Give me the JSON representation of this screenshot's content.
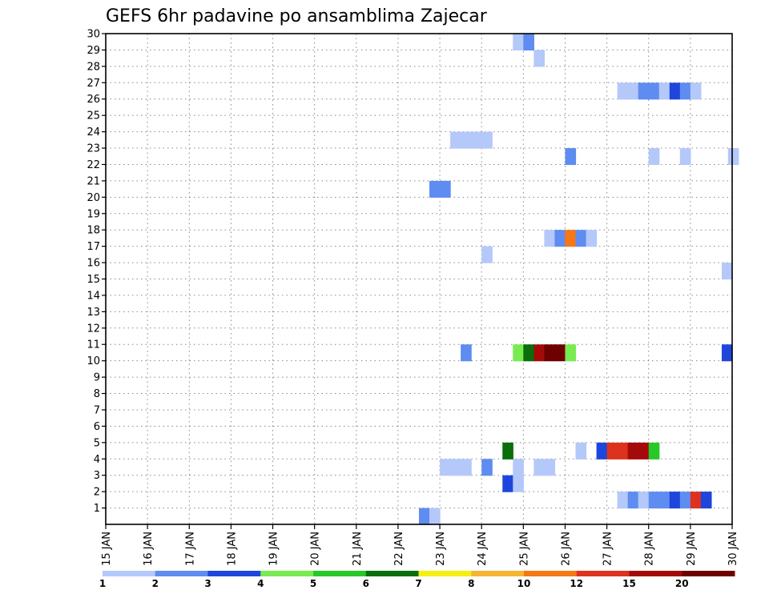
{
  "chart_data": {
    "type": "heatmap",
    "title": "GEFS 6hr padavine po ansamblima Zajecar",
    "y_ticks": [
      "1",
      "2",
      "3",
      "4",
      "5",
      "6",
      "7",
      "8",
      "9",
      "10",
      "11",
      "12",
      "13",
      "14",
      "15",
      "16",
      "17",
      "18",
      "19",
      "20",
      "21",
      "22",
      "23",
      "24",
      "25",
      "26",
      "27",
      "28",
      "29",
      "30"
    ],
    "x_ticks": [
      "15 JAN",
      "16 JAN",
      "17 JAN",
      "18 JAN",
      "19 JAN",
      "20 JAN",
      "21 JAN",
      "22 JAN",
      "23 JAN",
      "24 JAN",
      "25 JAN",
      "26 JAN",
      "27 JAN",
      "28 JAN",
      "29 JAN",
      "30 JAN"
    ],
    "x_range_days": [
      15,
      30
    ],
    "y_range": [
      0,
      30
    ],
    "grid": true,
    "colorbar": {
      "labels": [
        "1",
        "2",
        "3",
        "4",
        "5",
        "6",
        "7",
        "8",
        "10",
        "12",
        "15",
        "20"
      ],
      "colors": [
        "#b4c8fa",
        "#5f8cf0",
        "#1e46dc",
        "#78eb50",
        "#28c828",
        "#0a6e0a",
        "#f5f014",
        "#f5b432",
        "#f57814",
        "#dc321e",
        "#a50a0a",
        "#6e0000"
      ]
    },
    "cells": [
      {
        "m": 0,
        "d": 22.5,
        "c": 1
      },
      {
        "m": 0,
        "d": 22.75,
        "c": 0
      },
      {
        "m": 1,
        "d": 27.25,
        "c": 0
      },
      {
        "m": 1,
        "d": 27.5,
        "c": 1
      },
      {
        "m": 1,
        "d": 27.75,
        "c": 0
      },
      {
        "m": 1,
        "d": 28.0,
        "c": 1
      },
      {
        "m": 1,
        "d": 28.25,
        "c": 1
      },
      {
        "m": 1,
        "d": 28.5,
        "c": 2
      },
      {
        "m": 1,
        "d": 28.75,
        "c": 1
      },
      {
        "m": 1,
        "d": 29.0,
        "c": 9
      },
      {
        "m": 1,
        "d": 29.25,
        "c": 2
      },
      {
        "m": 2,
        "d": 24.5,
        "c": 2
      },
      {
        "m": 2,
        "d": 24.75,
        "c": 0
      },
      {
        "m": 3,
        "d": 23.0,
        "c": 0
      },
      {
        "m": 3,
        "d": 23.25,
        "c": 0
      },
      {
        "m": 3,
        "d": 23.5,
        "c": 0
      },
      {
        "m": 3,
        "d": 24.0,
        "c": 1
      },
      {
        "m": 3,
        "d": 24.75,
        "c": 0
      },
      {
        "m": 3,
        "d": 25.25,
        "c": 0
      },
      {
        "m": 3,
        "d": 25.5,
        "c": 0
      },
      {
        "m": 4,
        "d": 24.5,
        "c": 5
      },
      {
        "m": 4,
        "d": 26.25,
        "c": 0
      },
      {
        "m": 4,
        "d": 26.75,
        "c": 2
      },
      {
        "m": 4,
        "d": 27.0,
        "c": 9
      },
      {
        "m": 4,
        "d": 27.25,
        "c": 9
      },
      {
        "m": 4,
        "d": 27.5,
        "c": 10
      },
      {
        "m": 4,
        "d": 27.75,
        "c": 10
      },
      {
        "m": 4,
        "d": 28.0,
        "c": 4
      },
      {
        "m": 10,
        "d": 23.5,
        "c": 1
      },
      {
        "m": 10,
        "d": 24.75,
        "c": 3
      },
      {
        "m": 10,
        "d": 25.0,
        "c": 5
      },
      {
        "m": 10,
        "d": 25.25,
        "c": 10
      },
      {
        "m": 10,
        "d": 25.5,
        "c": 11
      },
      {
        "m": 10,
        "d": 25.75,
        "c": 11
      },
      {
        "m": 10,
        "d": 26.0,
        "c": 3
      },
      {
        "m": 10,
        "d": 29.75,
        "c": 2
      },
      {
        "m": 15,
        "d": 29.75,
        "c": 0
      },
      {
        "m": 16,
        "d": 24.0,
        "c": 0
      },
      {
        "m": 17,
        "d": 25.5,
        "c": 0
      },
      {
        "m": 17,
        "d": 25.75,
        "c": 1
      },
      {
        "m": 17,
        "d": 26.0,
        "c": 8
      },
      {
        "m": 17,
        "d": 26.25,
        "c": 1
      },
      {
        "m": 17,
        "d": 26.5,
        "c": 0
      },
      {
        "m": 20,
        "d": 22.75,
        "c": 1
      },
      {
        "m": 20,
        "d": 23.0,
        "c": 1
      },
      {
        "m": 22,
        "d": 26.0,
        "c": 1
      },
      {
        "m": 22,
        "d": 28.0,
        "c": 0
      },
      {
        "m": 22,
        "d": 28.75,
        "c": 0
      },
      {
        "m": 22,
        "d": 29.9,
        "c": 0
      },
      {
        "m": 23,
        "d": 23.25,
        "c": 0
      },
      {
        "m": 23,
        "d": 23.5,
        "c": 0
      },
      {
        "m": 23,
        "d": 23.75,
        "c": 0
      },
      {
        "m": 23,
        "d": 24.0,
        "c": 0
      },
      {
        "m": 26,
        "d": 27.25,
        "c": 0
      },
      {
        "m": 26,
        "d": 27.5,
        "c": 0
      },
      {
        "m": 26,
        "d": 27.75,
        "c": 1
      },
      {
        "m": 26,
        "d": 28.0,
        "c": 1
      },
      {
        "m": 26,
        "d": 28.25,
        "c": 0
      },
      {
        "m": 26,
        "d": 28.5,
        "c": 2
      },
      {
        "m": 26,
        "d": 28.75,
        "c": 1
      },
      {
        "m": 26,
        "d": 29.0,
        "c": 0
      },
      {
        "m": 28,
        "d": 25.25,
        "c": 0
      },
      {
        "m": 29,
        "d": 24.75,
        "c": 0
      },
      {
        "m": 29,
        "d": 25.0,
        "c": 1
      }
    ]
  }
}
